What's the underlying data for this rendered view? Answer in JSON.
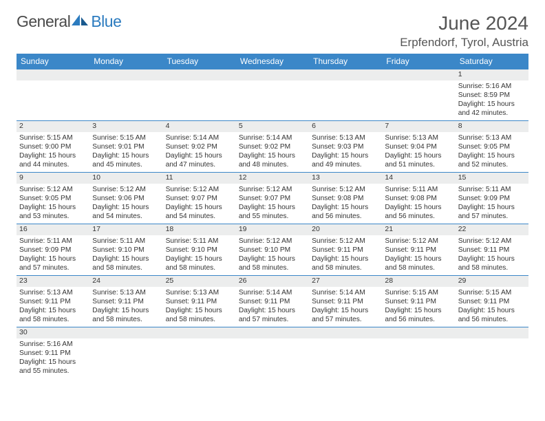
{
  "logo": {
    "main": "General",
    "accent": "Blue"
  },
  "title": "June 2024",
  "location": "Erpfendorf, Tyrol, Austria",
  "colors": {
    "header_bg": "#3b87c8",
    "header_text": "#ffffff",
    "daynum_bg": "#eceded",
    "border": "#3b87c8",
    "text": "#333333",
    "title_text": "#555555",
    "logo_main": "#4a4a4a",
    "logo_accent": "#2b7bbf"
  },
  "day_headers": [
    "Sunday",
    "Monday",
    "Tuesday",
    "Wednesday",
    "Thursday",
    "Friday",
    "Saturday"
  ],
  "weeks": [
    [
      null,
      null,
      null,
      null,
      null,
      null,
      {
        "n": "1",
        "sr": "Sunrise: 5:16 AM",
        "ss": "Sunset: 8:59 PM",
        "dl": "Daylight: 15 hours and 42 minutes."
      }
    ],
    [
      {
        "n": "2",
        "sr": "Sunrise: 5:15 AM",
        "ss": "Sunset: 9:00 PM",
        "dl": "Daylight: 15 hours and 44 minutes."
      },
      {
        "n": "3",
        "sr": "Sunrise: 5:15 AM",
        "ss": "Sunset: 9:01 PM",
        "dl": "Daylight: 15 hours and 45 minutes."
      },
      {
        "n": "4",
        "sr": "Sunrise: 5:14 AM",
        "ss": "Sunset: 9:02 PM",
        "dl": "Daylight: 15 hours and 47 minutes."
      },
      {
        "n": "5",
        "sr": "Sunrise: 5:14 AM",
        "ss": "Sunset: 9:02 PM",
        "dl": "Daylight: 15 hours and 48 minutes."
      },
      {
        "n": "6",
        "sr": "Sunrise: 5:13 AM",
        "ss": "Sunset: 9:03 PM",
        "dl": "Daylight: 15 hours and 49 minutes."
      },
      {
        "n": "7",
        "sr": "Sunrise: 5:13 AM",
        "ss": "Sunset: 9:04 PM",
        "dl": "Daylight: 15 hours and 51 minutes."
      },
      {
        "n": "8",
        "sr": "Sunrise: 5:13 AM",
        "ss": "Sunset: 9:05 PM",
        "dl": "Daylight: 15 hours and 52 minutes."
      }
    ],
    [
      {
        "n": "9",
        "sr": "Sunrise: 5:12 AM",
        "ss": "Sunset: 9:05 PM",
        "dl": "Daylight: 15 hours and 53 minutes."
      },
      {
        "n": "10",
        "sr": "Sunrise: 5:12 AM",
        "ss": "Sunset: 9:06 PM",
        "dl": "Daylight: 15 hours and 54 minutes."
      },
      {
        "n": "11",
        "sr": "Sunrise: 5:12 AM",
        "ss": "Sunset: 9:07 PM",
        "dl": "Daylight: 15 hours and 54 minutes."
      },
      {
        "n": "12",
        "sr": "Sunrise: 5:12 AM",
        "ss": "Sunset: 9:07 PM",
        "dl": "Daylight: 15 hours and 55 minutes."
      },
      {
        "n": "13",
        "sr": "Sunrise: 5:12 AM",
        "ss": "Sunset: 9:08 PM",
        "dl": "Daylight: 15 hours and 56 minutes."
      },
      {
        "n": "14",
        "sr": "Sunrise: 5:11 AM",
        "ss": "Sunset: 9:08 PM",
        "dl": "Daylight: 15 hours and 56 minutes."
      },
      {
        "n": "15",
        "sr": "Sunrise: 5:11 AM",
        "ss": "Sunset: 9:09 PM",
        "dl": "Daylight: 15 hours and 57 minutes."
      }
    ],
    [
      {
        "n": "16",
        "sr": "Sunrise: 5:11 AM",
        "ss": "Sunset: 9:09 PM",
        "dl": "Daylight: 15 hours and 57 minutes."
      },
      {
        "n": "17",
        "sr": "Sunrise: 5:11 AM",
        "ss": "Sunset: 9:10 PM",
        "dl": "Daylight: 15 hours and 58 minutes."
      },
      {
        "n": "18",
        "sr": "Sunrise: 5:11 AM",
        "ss": "Sunset: 9:10 PM",
        "dl": "Daylight: 15 hours and 58 minutes."
      },
      {
        "n": "19",
        "sr": "Sunrise: 5:12 AM",
        "ss": "Sunset: 9:10 PM",
        "dl": "Daylight: 15 hours and 58 minutes."
      },
      {
        "n": "20",
        "sr": "Sunrise: 5:12 AM",
        "ss": "Sunset: 9:11 PM",
        "dl": "Daylight: 15 hours and 58 minutes."
      },
      {
        "n": "21",
        "sr": "Sunrise: 5:12 AM",
        "ss": "Sunset: 9:11 PM",
        "dl": "Daylight: 15 hours and 58 minutes."
      },
      {
        "n": "22",
        "sr": "Sunrise: 5:12 AM",
        "ss": "Sunset: 9:11 PM",
        "dl": "Daylight: 15 hours and 58 minutes."
      }
    ],
    [
      {
        "n": "23",
        "sr": "Sunrise: 5:13 AM",
        "ss": "Sunset: 9:11 PM",
        "dl": "Daylight: 15 hours and 58 minutes."
      },
      {
        "n": "24",
        "sr": "Sunrise: 5:13 AM",
        "ss": "Sunset: 9:11 PM",
        "dl": "Daylight: 15 hours and 58 minutes."
      },
      {
        "n": "25",
        "sr": "Sunrise: 5:13 AM",
        "ss": "Sunset: 9:11 PM",
        "dl": "Daylight: 15 hours and 58 minutes."
      },
      {
        "n": "26",
        "sr": "Sunrise: 5:14 AM",
        "ss": "Sunset: 9:11 PM",
        "dl": "Daylight: 15 hours and 57 minutes."
      },
      {
        "n": "27",
        "sr": "Sunrise: 5:14 AM",
        "ss": "Sunset: 9:11 PM",
        "dl": "Daylight: 15 hours and 57 minutes."
      },
      {
        "n": "28",
        "sr": "Sunrise: 5:15 AM",
        "ss": "Sunset: 9:11 PM",
        "dl": "Daylight: 15 hours and 56 minutes."
      },
      {
        "n": "29",
        "sr": "Sunrise: 5:15 AM",
        "ss": "Sunset: 9:11 PM",
        "dl": "Daylight: 15 hours and 56 minutes."
      }
    ],
    [
      {
        "n": "30",
        "sr": "Sunrise: 5:16 AM",
        "ss": "Sunset: 9:11 PM",
        "dl": "Daylight: 15 hours and 55 minutes."
      },
      null,
      null,
      null,
      null,
      null,
      null
    ]
  ]
}
